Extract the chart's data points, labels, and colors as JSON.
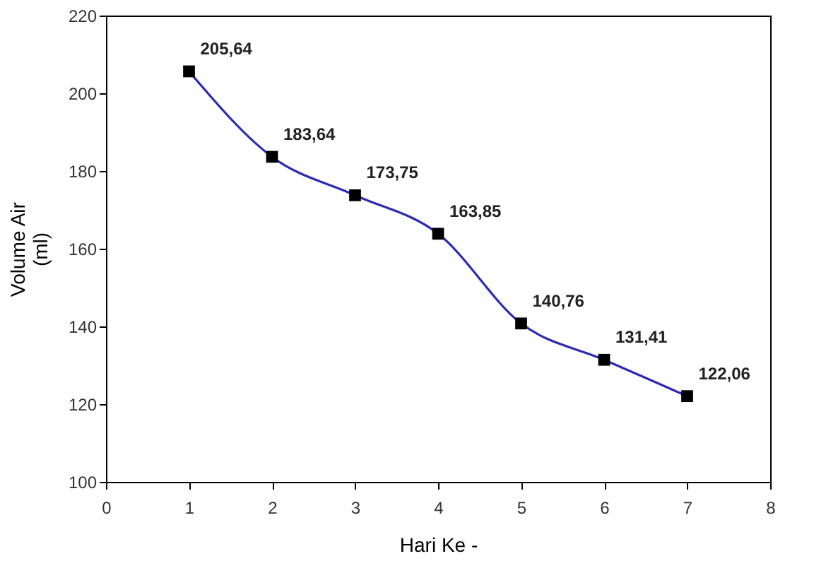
{
  "chart_data": {
    "type": "line",
    "xlabel": "Hari Ke -",
    "ylabel": "Volume Air\n(ml)",
    "x": [
      1,
      2,
      3,
      4,
      5,
      6,
      7
    ],
    "series": [
      {
        "color": "#2a2ab4",
        "values": [
          205.64,
          183.64,
          173.75,
          163.85,
          140.76,
          131.41,
          122.06
        ],
        "value_labels": [
          "205,64",
          "183,64",
          "173,75",
          "163,85",
          "140,76",
          "131,41",
          "122,06"
        ]
      }
    ],
    "marker": "square",
    "line_style": "solid",
    "xlim": [
      0,
      8
    ],
    "xticks": [
      0,
      1,
      2,
      3,
      4,
      5,
      6,
      7,
      8
    ],
    "ylim": [
      100,
      220
    ],
    "yticks": [
      100,
      120,
      140,
      160,
      180,
      200,
      220
    ],
    "grid": false
  }
}
